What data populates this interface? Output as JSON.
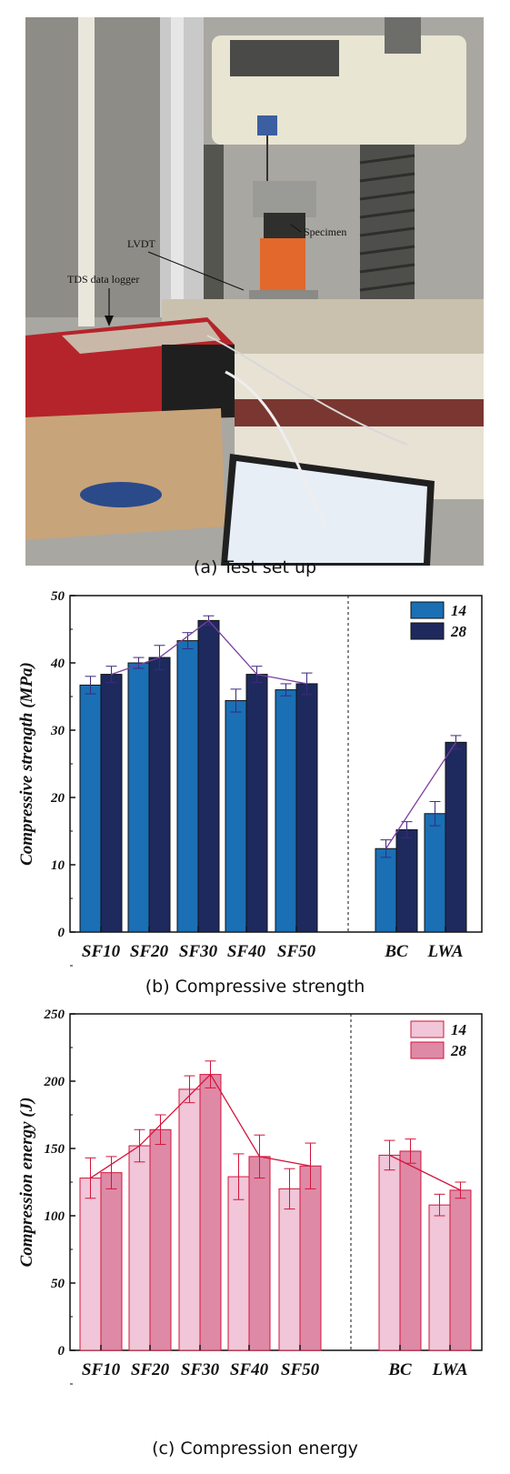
{
  "photo": {
    "annotations": [
      "LVDT",
      "Specimen",
      "TDS data logger"
    ],
    "caption": "(a) Test set up"
  },
  "charts": [
    {
      "caption": "(b) Compressive strength",
      "colors": {
        "14": "#1a6fb5",
        "28": "#1e2a5e",
        "trend": "#7b3fa0"
      },
      "chart_data": {
        "type": "bar",
        "categories": [
          "SF10",
          "SF20",
          "SF30",
          "SF40",
          "SF50",
          "BC",
          "LWA"
        ],
        "ylabel": "Compressive strength (MPa)",
        "ylim": [
          0,
          50
        ],
        "yticks": [
          "0",
          "10",
          "20",
          "30",
          "40",
          "50"
        ],
        "legend_position": "top-right",
        "series": [
          {
            "name": "14",
            "values": [
              36.7,
              40.0,
              43.3,
              34.4,
              36.0,
              12.4,
              17.6
            ],
            "errors": [
              1.3,
              0.8,
              1.2,
              1.7,
              0.9,
              1.3,
              1.8
            ]
          },
          {
            "name": "28",
            "values": [
              38.3,
              40.8,
              46.3,
              38.3,
              36.9,
              15.2,
              28.2
            ],
            "errors": [
              1.2,
              1.8,
              0.7,
              1.2,
              1.6,
              1.2,
              1.0
            ]
          }
        ]
      }
    },
    {
      "caption": "(c) Compression energy",
      "colors": {
        "14": "#f0c6d8",
        "28": "#de8aa6",
        "trend": "#d4143c"
      },
      "chart_data": {
        "type": "bar",
        "categories": [
          "SF10",
          "SF20",
          "SF30",
          "SF40",
          "SF50",
          "BC",
          "LWA"
        ],
        "ylabel": "Compression energy (J)",
        "ylim": [
          0,
          250
        ],
        "yticks": [
          "0",
          "50",
          "100",
          "150",
          "200",
          "250"
        ],
        "legend_position": "top-right",
        "series": [
          {
            "name": "14",
            "values": [
              128,
              152,
              194,
              129,
              120,
              145,
              108
            ],
            "errors": [
              15,
              12,
              10,
              17,
              15,
              11,
              8
            ]
          },
          {
            "name": "28",
            "values": [
              132,
              164,
              205,
              144,
              137,
              148,
              119
            ],
            "errors": [
              12,
              11,
              10,
              16,
              17,
              9,
              6
            ]
          }
        ]
      }
    }
  ]
}
